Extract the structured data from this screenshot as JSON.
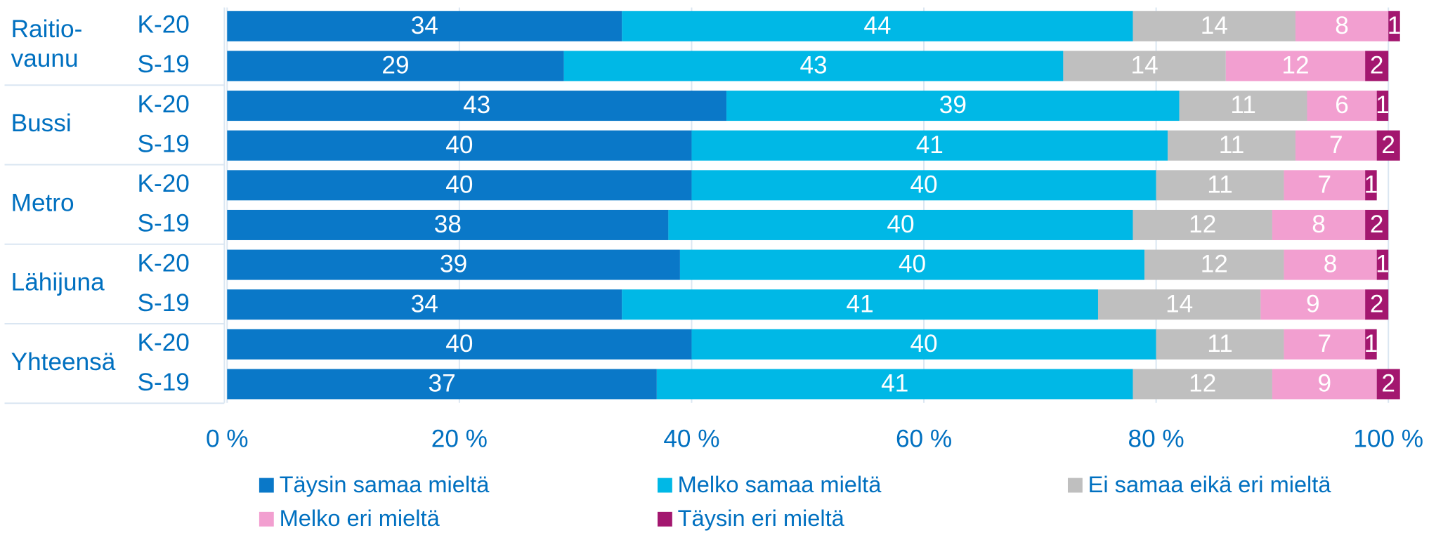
{
  "chart_data": {
    "type": "stacked_barh",
    "groups": [
      [
        "Raitio-",
        "vaunu"
      ],
      [
        "Bussi"
      ],
      [
        "Metro"
      ],
      [
        "Lähijuna"
      ],
      [
        "Yhteensä"
      ]
    ],
    "categories": [
      "K-20",
      "S-19",
      "K-20",
      "S-19",
      "K-20",
      "S-19",
      "K-20",
      "S-19",
      "K-20",
      "S-19"
    ],
    "series": [
      {
        "name": "Täysin samaa mieltä",
        "color": "#0a78c8",
        "values": [
          34,
          29,
          43,
          40,
          40,
          38,
          39,
          34,
          40,
          37
        ]
      },
      {
        "name": "Melko samaa mieltä",
        "color": "#00b8e6",
        "values": [
          44,
          43,
          39,
          41,
          40,
          40,
          40,
          41,
          40,
          41
        ]
      },
      {
        "name": "Ei samaa eikä eri mieltä",
        "color": "#bfbfbf",
        "values": [
          14,
          14,
          11,
          11,
          11,
          12,
          12,
          14,
          11,
          12
        ]
      },
      {
        "name": "Melko eri mieltä",
        "color": "#f29fd0",
        "values": [
          8,
          12,
          6,
          7,
          7,
          8,
          8,
          9,
          7,
          9
        ]
      },
      {
        "name": "Täysin eri mieltä",
        "color": "#a3176f",
        "values": [
          1,
          2,
          1,
          2,
          1,
          2,
          1,
          2,
          1,
          2
        ]
      }
    ],
    "xlim": [
      0,
      100
    ],
    "xticks": [
      {
        "value": 0,
        "label": "0 %"
      },
      {
        "value": 20,
        "label": "20 %"
      },
      {
        "value": 40,
        "label": "40 %"
      },
      {
        "value": 60,
        "label": "60 %"
      },
      {
        "value": 80,
        "label": "80 %"
      },
      {
        "value": 100,
        "label": "100 %"
      }
    ],
    "grid": true
  }
}
